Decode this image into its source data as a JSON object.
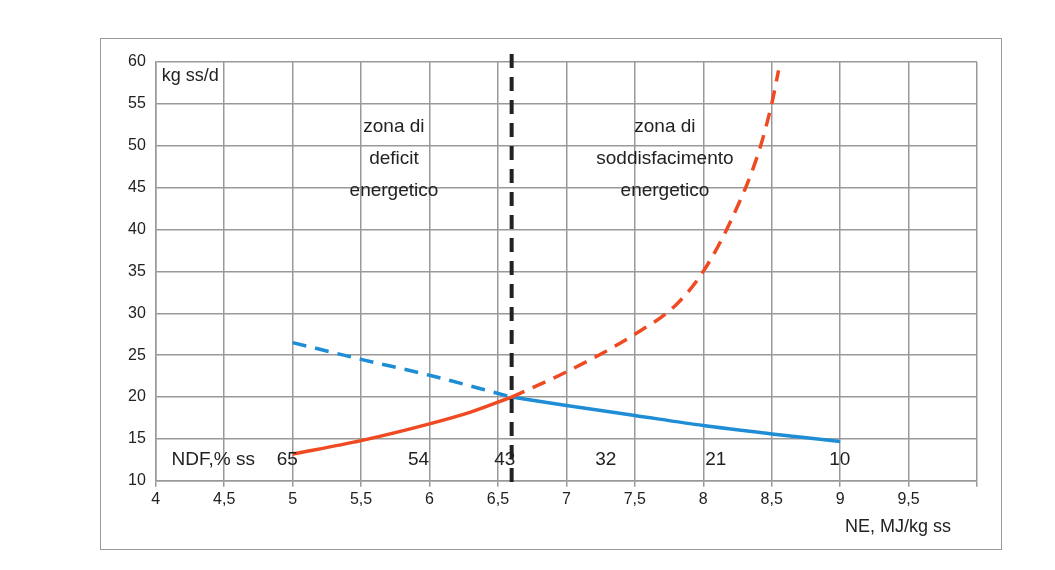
{
  "chart_data": {
    "type": "line",
    "xlabel": "NE, MJ/kg ss",
    "ylabel": "kg ss/d",
    "xlim": [
      4,
      10
    ],
    "xticks": [
      4,
      {
        "value": 4.5,
        "label": "4,5"
      },
      5,
      {
        "value": 5.5,
        "label": "5,5"
      },
      6,
      {
        "value": 6.5,
        "label": "6,5"
      },
      7,
      {
        "value": 7.5,
        "label": "7,5"
      },
      8,
      {
        "value": 8.5,
        "label": "8,5"
      },
      9,
      {
        "value": 9.5,
        "label": "9,5"
      },
      {
        "value": 10,
        "label": null
      }
    ],
    "ylim": [
      10,
      60
    ],
    "yticks": [
      10,
      15,
      20,
      25,
      30,
      35,
      40,
      45,
      50,
      55,
      60
    ],
    "grid": true,
    "legend": false,
    "marker": "none",
    "series": [
      {
        "color": "#f04a23",
        "line_style": "solid",
        "x": [
          5,
          5.5,
          6,
          6.3,
          6.6
        ],
        "values": [
          13.2,
          14.8,
          16.8,
          18.2,
          20
        ]
      },
      {
        "color": "#f04a23",
        "line_style": "dashed",
        "x": [
          6.6,
          7,
          7.5,
          7.8,
          8,
          8.2,
          8.4,
          8.5,
          8.55
        ],
        "values": [
          20,
          23,
          27.5,
          31,
          35,
          41,
          49,
          55,
          59
        ]
      },
      {
        "color": "#1f8dd6",
        "line_style": "dashed",
        "x": [
          5,
          5.5,
          6,
          6.6
        ],
        "values": [
          26.5,
          24.5,
          22.6,
          20
        ]
      },
      {
        "color": "#1f8dd6",
        "line_style": "solid",
        "x": [
          6.6,
          7,
          7.5,
          8,
          8.5,
          9
        ],
        "values": [
          20,
          19,
          17.8,
          16.6,
          15.6,
          14.7
        ]
      }
    ],
    "ref_lines": [
      {
        "axis": "x",
        "value": 6.6,
        "color": "#222222",
        "line_style": "dashed"
      }
    ],
    "annotations": [
      "zona di\ndeficit\nenergetico",
      "zona di\nsoddisfacimento\nenergetico",
      "NDF,% ss",
      "65",
      "54",
      "43",
      "32",
      "21",
      "10"
    ]
  }
}
